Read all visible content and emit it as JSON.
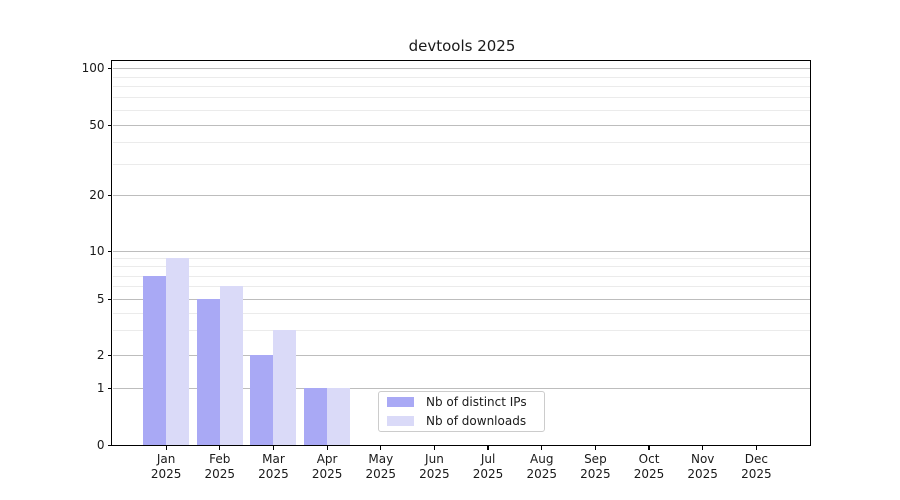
{
  "chart_data": {
    "type": "bar",
    "title": "devtools 2025",
    "categories": [
      "Jan",
      "Feb",
      "Mar",
      "Apr",
      "May",
      "Jun",
      "Jul",
      "Aug",
      "Sep",
      "Oct",
      "Nov",
      "Dec"
    ],
    "year_label": "2025",
    "series": [
      {
        "name": "Nb of distinct IPs",
        "color": "#a9a9f5",
        "values": [
          7,
          5,
          2,
          1,
          0,
          0,
          0,
          0,
          0,
          0,
          0,
          0
        ]
      },
      {
        "name": "Nb of downloads",
        "color": "#dadaf8",
        "values": [
          9,
          6,
          3,
          1,
          0,
          0,
          0,
          0,
          0,
          0,
          0,
          0
        ]
      }
    ],
    "xlabel": "",
    "ylabel": "",
    "y_scale": "log-like (symlog with 0 baseline)",
    "y_ticks": [
      0,
      1,
      2,
      5,
      10,
      20,
      50,
      100
    ],
    "y_minor_ticks": [
      3,
      4,
      6,
      7,
      8,
      9,
      30,
      40,
      60,
      70,
      80,
      90
    ],
    "ylim": [
      0,
      110
    ],
    "grid": true,
    "legend_position": "inside lower-center"
  }
}
